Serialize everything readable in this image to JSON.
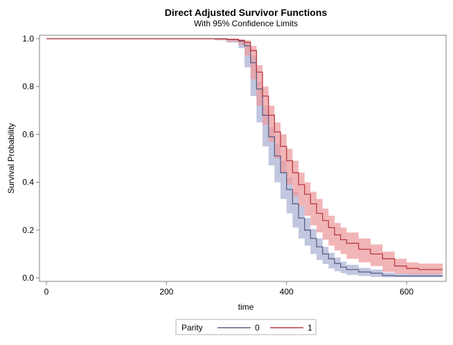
{
  "chart_data": {
    "type": "line",
    "title": "Direct Adjusted Survivor Functions",
    "subtitle": "With 95% Confidence Limits",
    "xlabel": "time",
    "ylabel": "Survival Probability",
    "xlim": [
      0,
      660
    ],
    "ylim": [
      0,
      1.0
    ],
    "x_ticks": [
      0,
      200,
      400,
      600
    ],
    "x_tick_labels": [
      "0",
      "200",
      "400",
      "600"
    ],
    "y_ticks": [
      0.0,
      0.2,
      0.4,
      0.6,
      0.8,
      1.0
    ],
    "y_tick_labels": [
      "0.0",
      "0.2",
      "0.4",
      "0.6",
      "0.8",
      "1.0"
    ],
    "grid": false,
    "legend": {
      "title": "Parity",
      "placement": "bottom-center",
      "entries": [
        "0",
        "1"
      ]
    },
    "colors": {
      "0": "#5a5f86",
      "1": "#b83a3f",
      "band_0": "#aeb4d6",
      "band_1": "#ec9c9f"
    },
    "series": [
      {
        "name": "0",
        "x": [
          0,
          280,
          300,
          320,
          330,
          340,
          350,
          360,
          370,
          380,
          390,
          400,
          410,
          420,
          430,
          440,
          450,
          460,
          470,
          480,
          490,
          500,
          520,
          540,
          560,
          580,
          600,
          620,
          640,
          660
        ],
        "y": [
          1.0,
          1.0,
          0.997,
          0.99,
          0.97,
          0.9,
          0.79,
          0.68,
          0.59,
          0.51,
          0.44,
          0.37,
          0.31,
          0.25,
          0.2,
          0.165,
          0.13,
          0.1,
          0.08,
          0.06,
          0.045,
          0.035,
          0.025,
          0.02,
          0.01,
          0.008,
          0.008,
          0.008,
          0.008,
          0.008
        ],
        "lower": [
          1.0,
          1.0,
          0.993,
          0.984,
          0.96,
          0.88,
          0.76,
          0.65,
          0.55,
          0.47,
          0.4,
          0.33,
          0.27,
          0.21,
          0.165,
          0.135,
          0.1,
          0.075,
          0.058,
          0.04,
          0.028,
          0.02,
          0.012,
          0.008,
          0.004,
          0.003,
          0.003,
          0.003,
          0.003,
          0.003
        ],
        "upper": [
          1.0,
          1.0,
          0.999,
          0.996,
          0.98,
          0.93,
          0.82,
          0.72,
          0.63,
          0.56,
          0.49,
          0.42,
          0.36,
          0.3,
          0.25,
          0.205,
          0.165,
          0.13,
          0.105,
          0.085,
          0.068,
          0.055,
          0.042,
          0.035,
          0.022,
          0.018,
          0.018,
          0.018,
          0.018,
          0.018
        ]
      },
      {
        "name": "1",
        "x": [
          0,
          280,
          300,
          320,
          330,
          340,
          350,
          360,
          370,
          380,
          390,
          400,
          410,
          420,
          430,
          440,
          450,
          460,
          470,
          480,
          490,
          500,
          520,
          540,
          560,
          580,
          600,
          620,
          640,
          660
        ],
        "y": [
          1.0,
          1.0,
          0.998,
          0.993,
          0.985,
          0.95,
          0.86,
          0.76,
          0.68,
          0.61,
          0.55,
          0.49,
          0.44,
          0.39,
          0.35,
          0.31,
          0.27,
          0.24,
          0.21,
          0.18,
          0.16,
          0.145,
          0.12,
          0.1,
          0.08,
          0.05,
          0.04,
          0.035,
          0.035,
          0.035
        ],
        "lower": [
          1.0,
          1.0,
          0.995,
          0.988,
          0.975,
          0.93,
          0.83,
          0.72,
          0.64,
          0.57,
          0.5,
          0.44,
          0.39,
          0.34,
          0.3,
          0.26,
          0.22,
          0.19,
          0.16,
          0.135,
          0.115,
          0.1,
          0.08,
          0.065,
          0.05,
          0.025,
          0.018,
          0.015,
          0.015,
          0.015
        ],
        "upper": [
          1.0,
          1.0,
          1.0,
          0.997,
          0.993,
          0.97,
          0.89,
          0.8,
          0.72,
          0.65,
          0.6,
          0.54,
          0.49,
          0.44,
          0.4,
          0.36,
          0.33,
          0.29,
          0.26,
          0.23,
          0.21,
          0.19,
          0.165,
          0.14,
          0.11,
          0.08,
          0.065,
          0.06,
          0.06,
          0.06
        ]
      }
    ]
  }
}
